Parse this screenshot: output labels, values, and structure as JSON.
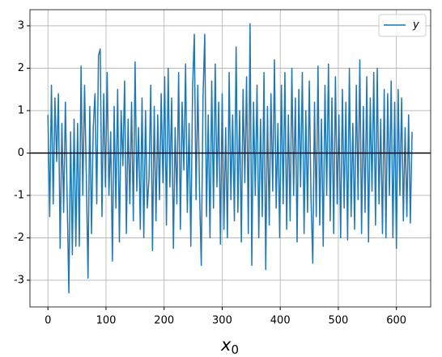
{
  "chart_data": {
    "type": "line",
    "x": [
      0,
      3,
      6,
      9,
      12,
      15,
      18,
      21,
      24,
      27,
      30,
      33,
      36,
      39,
      42,
      45,
      48,
      51,
      54,
      57,
      60,
      63,
      66,
      69,
      72,
      75,
      78,
      81,
      84,
      87,
      90,
      93,
      96,
      99,
      102,
      105,
      108,
      111,
      114,
      117,
      120,
      123,
      126,
      129,
      132,
      135,
      138,
      141,
      144,
      147,
      150,
      153,
      156,
      159,
      162,
      165,
      168,
      171,
      174,
      177,
      180,
      183,
      186,
      189,
      192,
      195,
      198,
      201,
      204,
      207,
      210,
      213,
      216,
      219,
      222,
      225,
      228,
      231,
      234,
      237,
      240,
      243,
      246,
      249,
      252,
      255,
      258,
      261,
      264,
      267,
      270,
      273,
      276,
      279,
      282,
      285,
      288,
      291,
      294,
      297,
      300,
      303,
      306,
      309,
      312,
      315,
      318,
      321,
      324,
      327,
      330,
      333,
      336,
      339,
      342,
      345,
      348,
      351,
      354,
      357,
      360,
      363,
      366,
      369,
      372,
      375,
      378,
      381,
      384,
      387,
      390,
      393,
      396,
      399,
      402,
      405,
      408,
      411,
      414,
      417,
      420,
      423,
      426,
      429,
      432,
      435,
      438,
      441,
      444,
      447,
      450,
      453,
      456,
      459,
      462,
      465,
      468,
      471,
      474,
      477,
      480,
      483,
      486,
      489,
      492,
      495,
      498,
      501,
      504,
      507,
      510,
      513,
      516,
      519,
      522,
      525,
      528,
      531,
      534,
      537,
      540,
      543,
      546,
      549,
      552,
      555,
      558,
      561,
      564,
      567,
      570,
      573,
      576,
      579,
      582,
      585,
      588,
      591,
      594,
      597,
      600,
      603,
      606,
      609,
      612,
      615,
      618,
      621,
      624,
      627
    ],
    "series": [
      {
        "name": "y",
        "color": "#1f77b4",
        "values": [
          0.9,
          -1.5,
          1.6,
          -1.2,
          1.3,
          -0.2,
          1.4,
          -2.25,
          0.7,
          -1.4,
          1.2,
          -1.0,
          -3.3,
          0.5,
          -2.4,
          0.8,
          -2.2,
          0.7,
          -2.2,
          2.05,
          -1.0,
          1.6,
          -0.5,
          -2.95,
          1.1,
          -1.9,
          0.6,
          1.4,
          -1.2,
          2.3,
          2.45,
          -1.5,
          1.4,
          -0.8,
          1.9,
          -1.0,
          0.5,
          -2.55,
          1.1,
          -1.3,
          1.5,
          -2.1,
          1.0,
          -0.3,
          1.7,
          -1.9,
          0.8,
          -1.2,
          1.2,
          -1.6,
          2.15,
          -0.9,
          0.6,
          -1.8,
          1.3,
          -2.0,
          1.0,
          -1.3,
          -0.6,
          1.6,
          -2.3,
          1.1,
          -1.6,
          0.9,
          -1.1,
          1.4,
          -0.7,
          1.8,
          -1.7,
          2.0,
          -0.8,
          1.3,
          -2.25,
          0.6,
          -1.2,
          1.9,
          -1.8,
          1.2,
          -0.4,
          2.1,
          -1.4,
          0.7,
          -2.2,
          1.5,
          2.8,
          -1.1,
          1.6,
          -0.9,
          -2.65,
          1.3,
          2.8,
          -1.5,
          0.9,
          -2.0,
          1.7,
          -1.3,
          2.1,
          -0.8,
          1.2,
          -2.15,
          1.4,
          -1.8,
          0.6,
          -2.0,
          1.9,
          -1.1,
          0.9,
          -1.6,
          2.5,
          -1.4,
          1.0,
          -2.1,
          1.5,
          -0.7,
          1.8,
          -1.9,
          3.05,
          -2.65,
          1.2,
          -1.0,
          1.6,
          -2.0,
          0.8,
          -1.5,
          1.9,
          -2.75,
          1.1,
          -1.7,
          1.4,
          -0.9,
          2.2,
          -1.3,
          0.7,
          -2.0,
          1.6,
          -1.2,
          1.9,
          -1.8,
          0.9,
          -1.6,
          2.0,
          -1.0,
          1.3,
          -2.1,
          1.5,
          -0.8,
          1.9,
          -1.9,
          1.0,
          -1.4,
          1.7,
          -1.1,
          -2.6,
          1.2,
          -1.5,
          2.05,
          -1.7,
          0.8,
          -2.2,
          1.6,
          -1.0,
          2.1,
          -1.6,
          1.3,
          -1.9,
          1.8,
          -1.2,
          0.9,
          -2.0,
          1.5,
          -1.3,
          1.2,
          -2.05,
          2.0,
          -1.5,
          0.7,
          -1.8,
          1.6,
          -1.1,
          2.2,
          -1.9,
          1.1,
          -1.4,
          1.8,
          -2.1,
          1.3,
          -0.9,
          1.9,
          -1.7,
          2.0,
          -1.2,
          0.8,
          -1.9,
          1.5,
          -2.0,
          1.4,
          -1.0,
          1.7,
          -2.0,
          1.2,
          -2.25,
          1.5,
          -1.0,
          1.3,
          -1.6,
          0.6,
          -1.5,
          0.9,
          -1.65,
          0.5
        ]
      }
    ],
    "xlim": [
      -31,
      659
    ],
    "ylim": [
      -3.63,
      3.38
    ],
    "xticks": [
      0,
      100,
      200,
      300,
      400,
      500,
      600
    ],
    "yticks": [
      -3,
      -2,
      -1,
      0,
      1,
      2,
      3
    ],
    "grid": true,
    "axhline": 0,
    "legend": "upper right",
    "xlabel": "x",
    "xlabel_sub": "0"
  }
}
